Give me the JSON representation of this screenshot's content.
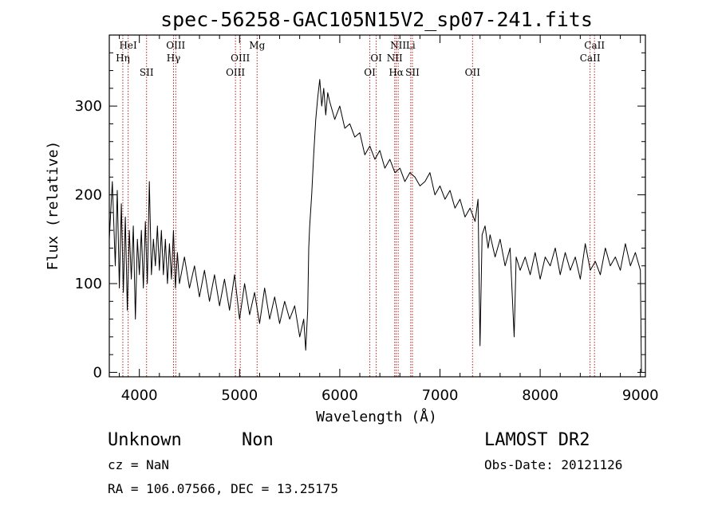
{
  "chart_data": {
    "type": "line",
    "title": "spec-56258-GAC105N15V2_sp07-241.fits",
    "xlabel": "Wavelength (Å)",
    "ylabel": "Flux (relative)",
    "xlim": [
      3700,
      9050
    ],
    "ylim": [
      -5,
      380
    ],
    "x_ticks": [
      4000,
      5000,
      6000,
      7000,
      8000,
      9000
    ],
    "y_ticks": [
      0,
      100,
      200,
      300
    ],
    "grid": false,
    "series": [
      {
        "color": "#000000",
        "points": [
          [
            3700,
            150
          ],
          [
            3730,
            215
          ],
          [
            3760,
            120
          ],
          [
            3780,
            205
          ],
          [
            3800,
            95
          ],
          [
            3820,
            190
          ],
          [
            3840,
            90
          ],
          [
            3860,
            175
          ],
          [
            3880,
            70
          ],
          [
            3900,
            160
          ],
          [
            3920,
            105
          ],
          [
            3940,
            165
          ],
          [
            3960,
            60
          ],
          [
            3980,
            150
          ],
          [
            4000,
            110
          ],
          [
            4020,
            160
          ],
          [
            4040,
            95
          ],
          [
            4060,
            170
          ],
          [
            4080,
            100
          ],
          [
            4100,
            215
          ],
          [
            4120,
            110
          ],
          [
            4140,
            150
          ],
          [
            4160,
            120
          ],
          [
            4180,
            165
          ],
          [
            4200,
            115
          ],
          [
            4220,
            160
          ],
          [
            4240,
            110
          ],
          [
            4260,
            150
          ],
          [
            4280,
            100
          ],
          [
            4300,
            145
          ],
          [
            4320,
            105
          ],
          [
            4340,
            160
          ],
          [
            4360,
            95
          ],
          [
            4380,
            135
          ],
          [
            4400,
            100
          ],
          [
            4450,
            130
          ],
          [
            4500,
            95
          ],
          [
            4550,
            120
          ],
          [
            4600,
            85
          ],
          [
            4650,
            115
          ],
          [
            4700,
            80
          ],
          [
            4750,
            110
          ],
          [
            4800,
            75
          ],
          [
            4850,
            105
          ],
          [
            4900,
            70
          ],
          [
            4950,
            110
          ],
          [
            5000,
            60
          ],
          [
            5050,
            100
          ],
          [
            5100,
            65
          ],
          [
            5150,
            90
          ],
          [
            5200,
            55
          ],
          [
            5250,
            95
          ],
          [
            5300,
            60
          ],
          [
            5350,
            85
          ],
          [
            5400,
            55
          ],
          [
            5450,
            80
          ],
          [
            5500,
            60
          ],
          [
            5550,
            75
          ],
          [
            5600,
            40
          ],
          [
            5640,
            60
          ],
          [
            5660,
            25
          ],
          [
            5680,
            70
          ],
          [
            5690,
            140
          ],
          [
            5700,
            165
          ],
          [
            5720,
            200
          ],
          [
            5740,
            245
          ],
          [
            5760,
            285
          ],
          [
            5780,
            310
          ],
          [
            5800,
            330
          ],
          [
            5820,
            300
          ],
          [
            5840,
            320
          ],
          [
            5860,
            290
          ],
          [
            5880,
            315
          ],
          [
            5900,
            305
          ],
          [
            5950,
            285
          ],
          [
            6000,
            300
          ],
          [
            6050,
            275
          ],
          [
            6100,
            280
          ],
          [
            6150,
            265
          ],
          [
            6200,
            270
          ],
          [
            6250,
            245
          ],
          [
            6300,
            255
          ],
          [
            6350,
            240
          ],
          [
            6400,
            250
          ],
          [
            6450,
            230
          ],
          [
            6500,
            240
          ],
          [
            6550,
            225
          ],
          [
            6600,
            230
          ],
          [
            6650,
            215
          ],
          [
            6700,
            225
          ],
          [
            6750,
            220
          ],
          [
            6800,
            210
          ],
          [
            6850,
            215
          ],
          [
            6900,
            225
          ],
          [
            6950,
            200
          ],
          [
            7000,
            210
          ],
          [
            7050,
            195
          ],
          [
            7100,
            205
          ],
          [
            7150,
            185
          ],
          [
            7200,
            195
          ],
          [
            7250,
            175
          ],
          [
            7300,
            185
          ],
          [
            7350,
            170
          ],
          [
            7380,
            195
          ],
          [
            7400,
            30
          ],
          [
            7420,
            155
          ],
          [
            7450,
            165
          ],
          [
            7480,
            140
          ],
          [
            7500,
            155
          ],
          [
            7550,
            130
          ],
          [
            7600,
            150
          ],
          [
            7650,
            120
          ],
          [
            7700,
            140
          ],
          [
            7740,
            40
          ],
          [
            7760,
            130
          ],
          [
            7800,
            115
          ],
          [
            7850,
            130
          ],
          [
            7900,
            110
          ],
          [
            7950,
            135
          ],
          [
            8000,
            105
          ],
          [
            8050,
            130
          ],
          [
            8100,
            120
          ],
          [
            8150,
            140
          ],
          [
            8200,
            110
          ],
          [
            8250,
            135
          ],
          [
            8300,
            115
          ],
          [
            8350,
            130
          ],
          [
            8400,
            105
          ],
          [
            8450,
            145
          ],
          [
            8500,
            115
          ],
          [
            8550,
            125
          ],
          [
            8600,
            110
          ],
          [
            8650,
            140
          ],
          [
            8700,
            120
          ],
          [
            8750,
            130
          ],
          [
            8800,
            115
          ],
          [
            8850,
            145
          ],
          [
            8900,
            120
          ],
          [
            8950,
            135
          ],
          [
            9000,
            115
          ],
          [
            9010,
            0
          ]
        ]
      }
    ],
    "lines": [
      {
        "name": "HeI",
        "x": 3888,
        "row": 1
      },
      {
        "name": "Hη",
        "x": 3835,
        "row": 2
      },
      {
        "name": "SII",
        "x": 4072,
        "row": 3
      },
      {
        "name": "OIII",
        "x": 4363,
        "row": 1
      },
      {
        "name": "Hγ",
        "x": 4341,
        "row": 2
      },
      {
        "name": "OIII",
        "x": 5007,
        "row": 2
      },
      {
        "name": "OIII",
        "x": 4959,
        "row": 3
      },
      {
        "name": "Mg",
        "x": 5175,
        "row": 1
      },
      {
        "name": "OI",
        "x": 6364,
        "row": 2
      },
      {
        "name": "OI",
        "x": 6300,
        "row": 3
      },
      {
        "name": "NII",
        "x": 6583,
        "row": 1
      },
      {
        "name": "Li",
        "x": 6708,
        "row": 1
      },
      {
        "name": "NII",
        "x": 6548,
        "row": 2
      },
      {
        "name": "Hα",
        "x": 6563,
        "row": 3
      },
      {
        "name": "SII",
        "x": 6725,
        "row": 3
      },
      {
        "name": "OII",
        "x": 7325,
        "row": 3
      },
      {
        "name": "CaII",
        "x": 8542,
        "row": 1
      },
      {
        "name": "CaII",
        "x": 8498,
        "row": 2
      }
    ]
  },
  "footer": {
    "object_class": "Unknown",
    "subclass": "Non",
    "survey": "LAMOST DR2",
    "redshift": "cz = NaN",
    "obs_date": "Obs-Date: 20121126",
    "coords": "RA = 106.07566, DEC =  13.25175"
  }
}
